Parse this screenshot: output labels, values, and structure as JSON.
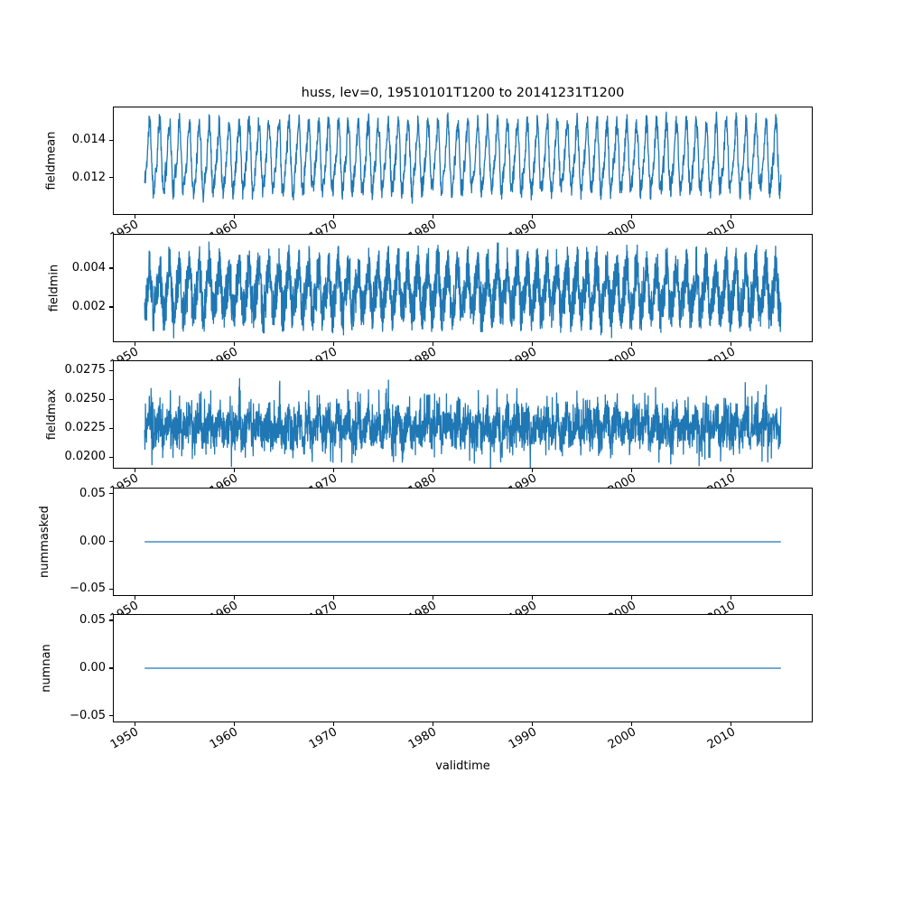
{
  "figure": {
    "background": "#ffffff",
    "text_color": "#000000"
  },
  "chart_data": {
    "type": "line",
    "title": "huss, lev=0, 19510101T1200 to 20141231T1200",
    "xlabel": "validtime",
    "line_color": "#1f77b4",
    "axis_color": "#000000",
    "grid": false,
    "legend": null,
    "x_axis": {
      "min": 1947.8,
      "max": 2018.2,
      "data_start": 1951.0,
      "data_end": 2015.0,
      "ticks": [
        1950,
        1960,
        1970,
        1980,
        1990,
        2000,
        2010
      ],
      "tick_labels": [
        "1950",
        "1960",
        "1970",
        "1980",
        "1990",
        "2000",
        "2010"
      ],
      "tick_rotation_deg": 30
    },
    "subplots": [
      {
        "ylabel": "fieldmean",
        "ylim": [
          0.01,
          0.0158
        ],
        "yticks": [
          0.012,
          0.014
        ],
        "ytick_labels": [
          "0.012",
          "0.014"
        ],
        "series": {
          "kind": "seasonal_noise",
          "mean": 0.013,
          "seasonal_amplitude": 0.0017,
          "semiannual_amplitude": 0.0004,
          "noise_amplitude": 0.0005,
          "spike_amplitude": 0.0003,
          "points_per_year": 36,
          "seed": 11
        }
      },
      {
        "ylabel": "fieldmin",
        "ylim": [
          0.0002,
          0.0058
        ],
        "yticks": [
          0.002,
          0.004
        ],
        "ytick_labels": [
          "0.002",
          "0.004"
        ],
        "series": {
          "kind": "seasonal_noise",
          "mean": 0.00285,
          "seasonal_amplitude": 0.0011,
          "semiannual_amplitude": 0.00025,
          "noise_amplitude": 0.0011,
          "spike_amplitude": 0.0004,
          "points_per_year": 60,
          "seed": 22
        }
      },
      {
        "ylabel": "fieldmax",
        "ylim": [
          0.019,
          0.0284
        ],
        "yticks": [
          0.02,
          0.0225,
          0.025,
          0.0275
        ],
        "ytick_labels": [
          "0.0200",
          "0.0225",
          "0.0250",
          "0.0275"
        ],
        "series": {
          "kind": "seasonal_noise",
          "mean": 0.0226,
          "seasonal_amplitude": 0.0007,
          "semiannual_amplitude": 0.0003,
          "noise_amplitude": 0.0013,
          "spike_amplitude": 0.0022,
          "points_per_year": 48,
          "seed": 33
        }
      },
      {
        "ylabel": "nummasked",
        "ylim": [
          -0.0567,
          0.0567
        ],
        "yticks": [
          -0.05,
          0.0,
          0.05
        ],
        "ytick_labels": [
          "−0.05",
          "0.00",
          "0.05"
        ],
        "series": {
          "kind": "constant",
          "value": 0.0
        }
      },
      {
        "ylabel": "numnan",
        "ylim": [
          -0.0567,
          0.0567
        ],
        "yticks": [
          -0.05,
          0.0,
          0.05
        ],
        "ytick_labels": [
          "−0.05",
          "0.00",
          "0.05"
        ],
        "series": {
          "kind": "constant",
          "value": 0.0
        }
      }
    ]
  }
}
